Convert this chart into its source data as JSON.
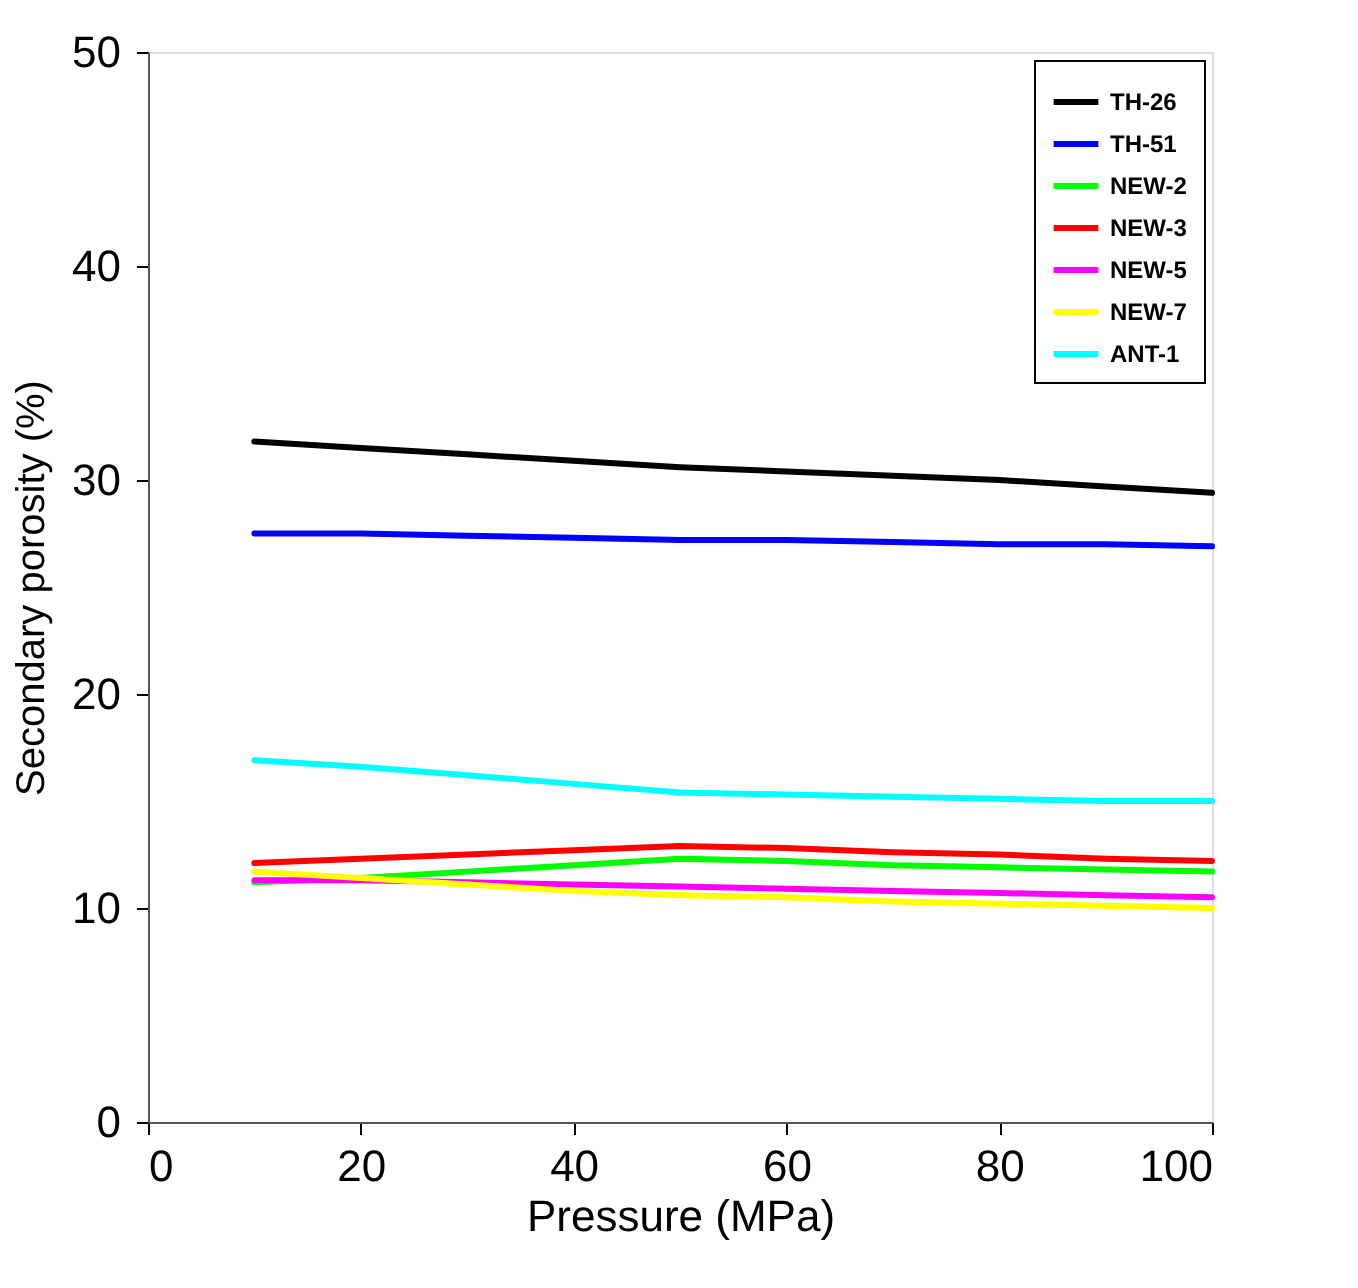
{
  "chart_data": {
    "type": "line",
    "xlabel": "Pressure (MPa)",
    "ylabel": "Secondary porosity (%)",
    "x": [
      10,
      20,
      30,
      40,
      50,
      60,
      70,
      80,
      90,
      100
    ],
    "series": [
      {
        "name": "TH-26",
        "color": "#000000",
        "values": [
          31.8,
          31.5,
          31.2,
          30.9,
          30.6,
          30.4,
          30.2,
          30.0,
          29.7,
          29.4
        ]
      },
      {
        "name": "TH-51",
        "color": "#0000ff",
        "values": [
          27.5,
          27.5,
          27.4,
          27.3,
          27.2,
          27.2,
          27.1,
          27.0,
          27.0,
          26.9
        ]
      },
      {
        "name": "NEW-2",
        "color": "#00ff00",
        "values": [
          11.2,
          11.4,
          11.7,
          12.0,
          12.3,
          12.2,
          12.0,
          11.9,
          11.8,
          11.7
        ]
      },
      {
        "name": "NEW-3",
        "color": "#ff0000",
        "values": [
          12.1,
          12.3,
          12.5,
          12.7,
          12.9,
          12.8,
          12.6,
          12.5,
          12.3,
          12.2
        ]
      },
      {
        "name": "NEW-5",
        "color": "#ff00ff",
        "values": [
          11.3,
          11.3,
          11.2,
          11.1,
          11.0,
          10.9,
          10.8,
          10.7,
          10.6,
          10.5
        ]
      },
      {
        "name": "NEW-7",
        "color": "#ffff00",
        "values": [
          11.7,
          11.4,
          11.1,
          10.8,
          10.6,
          10.5,
          10.3,
          10.2,
          10.1,
          10.0
        ]
      },
      {
        "name": "ANT-1",
        "color": "#00ffff",
        "values": [
          16.9,
          16.6,
          16.2,
          15.8,
          15.4,
          15.3,
          15.2,
          15.1,
          15.0,
          15.0
        ]
      }
    ],
    "xlim": [
      0,
      100
    ],
    "xticks": [
      0,
      20,
      40,
      60,
      80,
      100
    ],
    "ylim": [
      0,
      50
    ],
    "yticks": [
      0,
      10,
      20,
      30,
      40,
      50
    ],
    "grid": false,
    "legend": "top right",
    "marker": "none",
    "line_style": "solid"
  }
}
